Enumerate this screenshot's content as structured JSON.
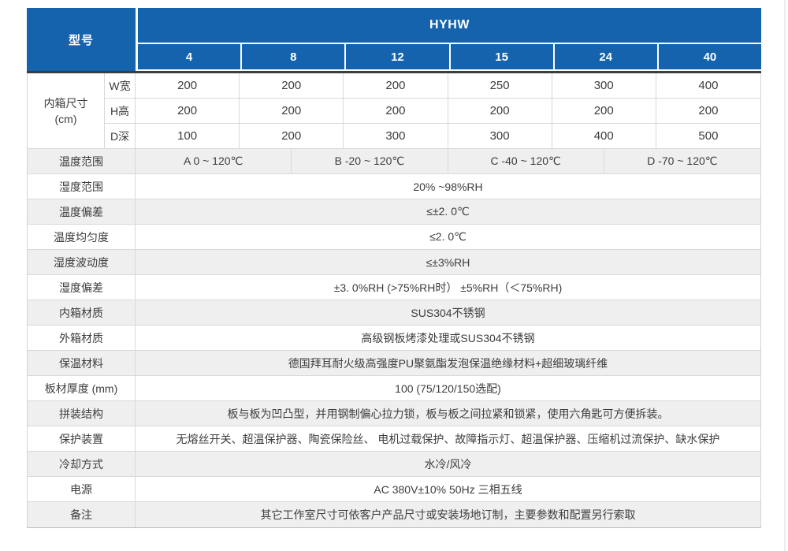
{
  "header": {
    "model_label": "型号",
    "series": "HYHW",
    "models": [
      "4",
      "8",
      "12",
      "15",
      "24",
      "40"
    ]
  },
  "dimensions": {
    "group_label_line1": "内箱尺寸",
    "group_label_line2": "(cm)",
    "rows": [
      {
        "label": "W宽",
        "values": [
          "200",
          "200",
          "200",
          "250",
          "300",
          "400"
        ]
      },
      {
        "label": "H高",
        "values": [
          "200",
          "200",
          "200",
          "200",
          "200",
          "200"
        ]
      },
      {
        "label": "D深",
        "values": [
          "100",
          "200",
          "300",
          "300",
          "400",
          "500"
        ]
      }
    ]
  },
  "temp_range": {
    "label": "温度范围",
    "cells": [
      "A 0 ~ 120℃",
      "B -20 ~ 120℃",
      "C -40 ~ 120℃",
      "D -70 ~ 120℃"
    ]
  },
  "specs": [
    {
      "label": "湿度范围",
      "value": "20% ~98%RH"
    },
    {
      "label": "温度偏差",
      "value": "≤±2. 0℃"
    },
    {
      "label": "温度均匀度",
      "value": "≤2. 0℃"
    },
    {
      "label": "湿度波动度",
      "value": "≤±3%RH"
    },
    {
      "label": "湿度偏差",
      "value": "±3. 0%RH (>75%RH时） ±5%RH（＜75%RH)"
    },
    {
      "label": "内箱材质",
      "value": "SUS304不锈钢"
    },
    {
      "label": "外箱材质",
      "value": "高级钢板烤漆处理或SUS304不锈钢"
    },
    {
      "label": "保温材料",
      "value": "德国拜耳耐火级高强度PU聚氨酯发泡保温绝缘材料+超细玻璃纤维"
    },
    {
      "label": "板材厚度 (mm)",
      "value": "100 (75/120/150选配)"
    },
    {
      "label": "拼装结构",
      "value": "板与板为凹凸型，并用钢制偏心拉力锁，板与板之间拉紧和锁紧，使用六角匙可方便拆装。"
    },
    {
      "label": "保护装置",
      "value": "无熔丝开关、超温保护器、陶瓷保险丝、 电机过载保护、故障指示灯、超温保护器、压缩机过流保护、缺水保护"
    },
    {
      "label": "冷却方式",
      "value": "水冷/风冷"
    },
    {
      "label": "电源",
      "value": "AC 380V±10% 50Hz 三相五线"
    },
    {
      "label": "备注",
      "value": "其它工作室尺寸可依客户产品尺寸或安装场地订制，主要参数和配置另行索取"
    }
  ],
  "colors": {
    "header_blue": "#1463ac",
    "stripe_gray": "#efefef",
    "divider_dark": "#3c3c3c",
    "border_light": "#d9d9d9",
    "text": "#3d3d3d"
  }
}
